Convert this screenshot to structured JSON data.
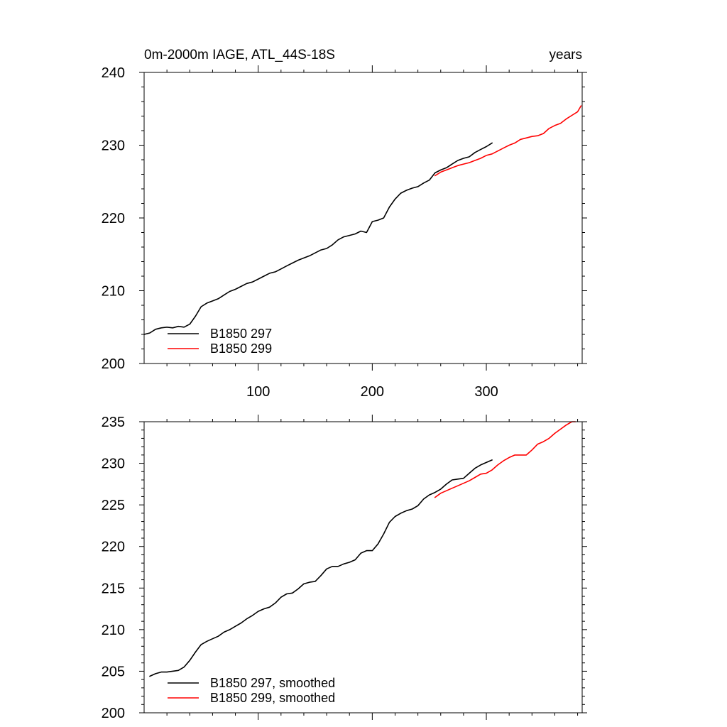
{
  "chart_data": [
    {
      "type": "line",
      "title": "0m-2000m IAGE, ATL_44S-18S",
      "units_label": "years",
      "xlim": [
        0,
        384
      ],
      "ylim": [
        200,
        240
      ],
      "x_ticks": [
        100,
        200,
        300
      ],
      "y_ticks": [
        200,
        210,
        220,
        230,
        240
      ],
      "x_minor_step": 20,
      "y_minor_step": 2,
      "grid": false,
      "legend_position": "bottom-left",
      "series": [
        {
          "name": "B1850 297",
          "color": "#000000",
          "x": [
            0,
            5,
            10,
            15,
            20,
            25,
            30,
            35,
            40,
            45,
            50,
            55,
            60,
            65,
            70,
            75,
            80,
            85,
            90,
            95,
            100,
            105,
            110,
            115,
            120,
            125,
            130,
            135,
            140,
            145,
            150,
            155,
            160,
            165,
            170,
            175,
            180,
            185,
            190,
            195,
            200,
            205,
            210,
            215,
            220,
            225,
            230,
            235,
            240,
            245,
            250,
            255,
            260,
            265,
            270,
            275,
            280,
            285,
            290,
            295,
            300,
            305
          ],
          "y": [
            204.0,
            204.2,
            204.7,
            204.9,
            205.0,
            204.9,
            205.1,
            205.0,
            205.4,
            206.5,
            207.8,
            208.3,
            208.6,
            208.9,
            209.4,
            209.9,
            210.2,
            210.6,
            211.0,
            211.2,
            211.6,
            212.0,
            212.4,
            212.6,
            213.0,
            213.4,
            213.8,
            214.2,
            214.5,
            214.8,
            215.2,
            215.6,
            215.8,
            216.3,
            217.0,
            217.4,
            217.6,
            217.8,
            218.2,
            218.0,
            219.5,
            219.7,
            220.0,
            221.5,
            222.6,
            223.4,
            223.8,
            224.1,
            224.3,
            224.8,
            225.2,
            226.2,
            226.6,
            226.9,
            227.4,
            227.9,
            228.2,
            228.4,
            229.0,
            229.4,
            229.8,
            230.3
          ]
        },
        {
          "name": "B1850 299",
          "color": "#ff0000",
          "x": [
            255,
            260,
            265,
            270,
            275,
            280,
            285,
            290,
            295,
            300,
            305,
            310,
            315,
            320,
            325,
            330,
            335,
            340,
            345,
            350,
            355,
            360,
            365,
            370,
            375,
            380,
            383
          ],
          "y": [
            225.8,
            226.3,
            226.6,
            226.9,
            227.2,
            227.4,
            227.6,
            227.9,
            228.2,
            228.6,
            228.8,
            229.2,
            229.6,
            230.0,
            230.3,
            230.8,
            231.0,
            231.2,
            231.3,
            231.6,
            232.3,
            232.7,
            233.0,
            233.6,
            234.1,
            234.6,
            235.4
          ]
        }
      ]
    },
    {
      "type": "line",
      "title": "",
      "xlim": [
        0,
        384
      ],
      "ylim": [
        200,
        235
      ],
      "x_ticks": [
        100,
        200,
        300
      ],
      "y_ticks": [
        200,
        205,
        210,
        215,
        220,
        225,
        230,
        235
      ],
      "x_minor_step": 20,
      "y_minor_step": 1,
      "grid": false,
      "legend_position": "bottom-left",
      "series": [
        {
          "name": "B1850 297, smoothed",
          "color": "#000000",
          "x": [
            5,
            10,
            15,
            20,
            25,
            30,
            35,
            40,
            45,
            50,
            55,
            60,
            65,
            70,
            75,
            80,
            85,
            90,
            95,
            100,
            105,
            110,
            115,
            120,
            125,
            130,
            135,
            140,
            145,
            150,
            155,
            160,
            165,
            170,
            175,
            180,
            185,
            190,
            195,
            200,
            205,
            210,
            215,
            220,
            225,
            230,
            235,
            240,
            245,
            250,
            255,
            260,
            265,
            270,
            275,
            280,
            285,
            290,
            295,
            300,
            305
          ],
          "y": [
            204.4,
            204.7,
            204.9,
            204.9,
            205.0,
            205.1,
            205.5,
            206.3,
            207.3,
            208.2,
            208.6,
            208.9,
            209.2,
            209.7,
            210.0,
            210.4,
            210.8,
            211.3,
            211.7,
            212.2,
            212.5,
            212.7,
            213.2,
            213.9,
            214.3,
            214.4,
            214.9,
            215.5,
            215.7,
            215.8,
            216.5,
            217.3,
            217.6,
            217.6,
            217.9,
            218.1,
            218.4,
            219.2,
            219.5,
            219.5,
            220.3,
            221.5,
            222.9,
            223.6,
            224.0,
            224.3,
            224.5,
            224.9,
            225.7,
            226.2,
            226.5,
            226.9,
            227.5,
            228.0,
            228.1,
            228.2,
            228.8,
            229.4,
            229.8,
            230.1,
            230.4
          ]
        },
        {
          "name": "B1850 299, smoothed",
          "color": "#ff0000",
          "x": [
            255,
            260,
            265,
            270,
            275,
            280,
            285,
            290,
            295,
            300,
            305,
            310,
            315,
            320,
            325,
            330,
            335,
            340,
            345,
            350,
            355,
            360,
            365,
            370,
            375,
            378
          ],
          "y": [
            225.9,
            226.4,
            226.7,
            227.0,
            227.3,
            227.6,
            227.9,
            228.3,
            228.7,
            228.8,
            229.2,
            229.8,
            230.3,
            230.7,
            231.0,
            231.0,
            231.0,
            231.6,
            232.3,
            232.6,
            233.0,
            233.6,
            234.1,
            234.6,
            235.0,
            235.0
          ]
        }
      ]
    }
  ]
}
